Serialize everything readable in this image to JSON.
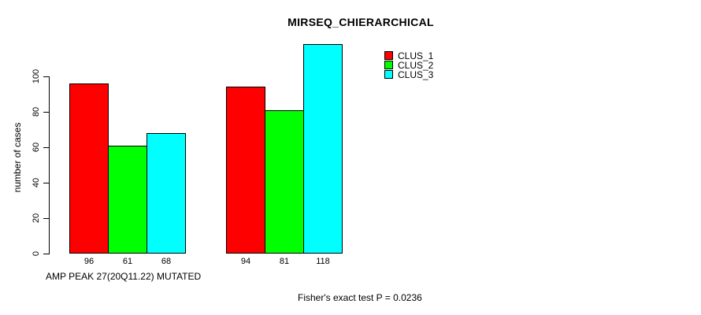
{
  "chart_data": {
    "type": "bar",
    "title": "MIRSEQ_CHIERARCHICAL",
    "ylabel": "number of cases",
    "xlabel": "AMP PEAK 27(20Q11.22) MUTATED",
    "footnote": "Fisher's exact test P = 0.0236",
    "yticks": [
      0,
      20,
      40,
      60,
      80,
      100
    ],
    "ylim": [
      0,
      118
    ],
    "grid": false,
    "background_color": "#ffffff",
    "axis_color": "#000000",
    "legend": {
      "position": "top-right",
      "entries": [
        {
          "label": "CLUS_1",
          "color": "#FF0000"
        },
        {
          "label": "CLUS_2",
          "color": "#00FF00"
        },
        {
          "label": "CLUS_3",
          "color": "#00FFFF"
        }
      ]
    },
    "series": [
      {
        "name": "CLUS_1",
        "color": "#FF0000",
        "values": [
          96,
          94
        ]
      },
      {
        "name": "CLUS_2",
        "color": "#00FF00",
        "values": [
          61,
          81
        ]
      },
      {
        "name": "CLUS_3",
        "color": "#00FFFF",
        "values": [
          68,
          118
        ]
      }
    ],
    "bar_value_labels": [
      [
        "96",
        "61",
        "68"
      ],
      [
        "94",
        "81",
        "118"
      ]
    ]
  }
}
